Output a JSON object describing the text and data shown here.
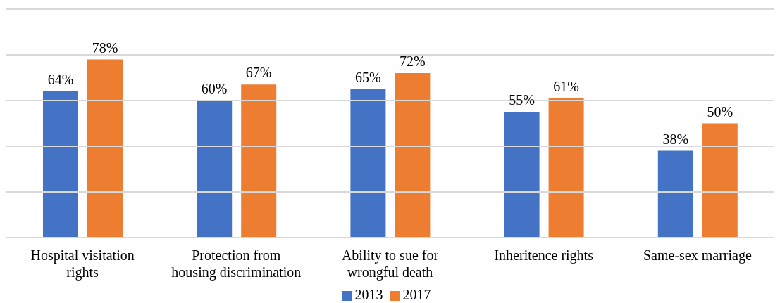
{
  "chart_data": {
    "type": "bar",
    "categories": [
      "Hospital visitation rights",
      "Protection from housing discrimination",
      "Ability to sue for wrongful death",
      "Inheritence rights",
      "Same-sex marriage"
    ],
    "series": [
      {
        "name": "2013",
        "color": "#4472c4",
        "values": [
          64,
          60,
          65,
          55,
          38
        ],
        "value_labels": [
          "64%",
          "60%",
          "65%",
          "55%",
          "38%"
        ]
      },
      {
        "name": "2017",
        "color": "#ed7d31",
        "values": [
          78,
          67,
          72,
          61,
          50
        ],
        "value_labels": [
          "78%",
          "67%",
          "72%",
          "61%",
          "50%"
        ]
      }
    ],
    "ylim": [
      0,
      100
    ],
    "yticks": [
      {
        "value": 0,
        "label": null
      },
      {
        "value": 20,
        "label": null
      },
      {
        "value": 40,
        "label": null
      },
      {
        "value": 60,
        "label": null
      },
      {
        "value": 80,
        "label": null
      },
      {
        "value": 100,
        "label": null
      }
    ],
    "tick_labels": "x",
    "grid": "y",
    "legend": "bottom"
  }
}
